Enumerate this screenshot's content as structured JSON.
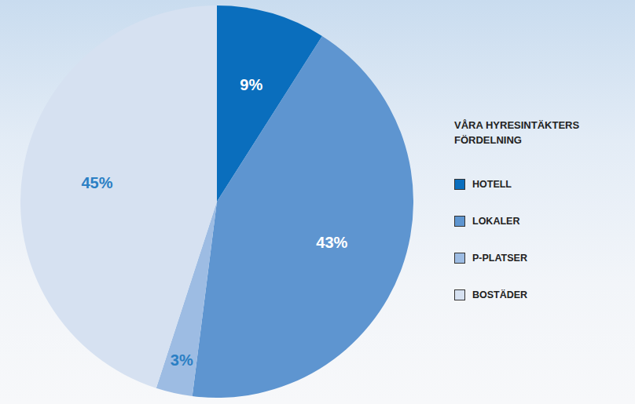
{
  "chart_data": {
    "type": "pie",
    "title": "VÅRA HYRESINTÄKTERS FÖRDELNING",
    "categories": [
      "HOTELL",
      "LOKALER",
      "P-PLATSER",
      "BOSTÄDER"
    ],
    "values": [
      9,
      43,
      3,
      45
    ],
    "value_labels": [
      "9%",
      "43%",
      "3%",
      "45%"
    ],
    "colors": [
      "#0a6ebd",
      "#5e95d0",
      "#9dbce3",
      "#d6e1f1"
    ],
    "data_labels": true,
    "legend": "right"
  }
}
